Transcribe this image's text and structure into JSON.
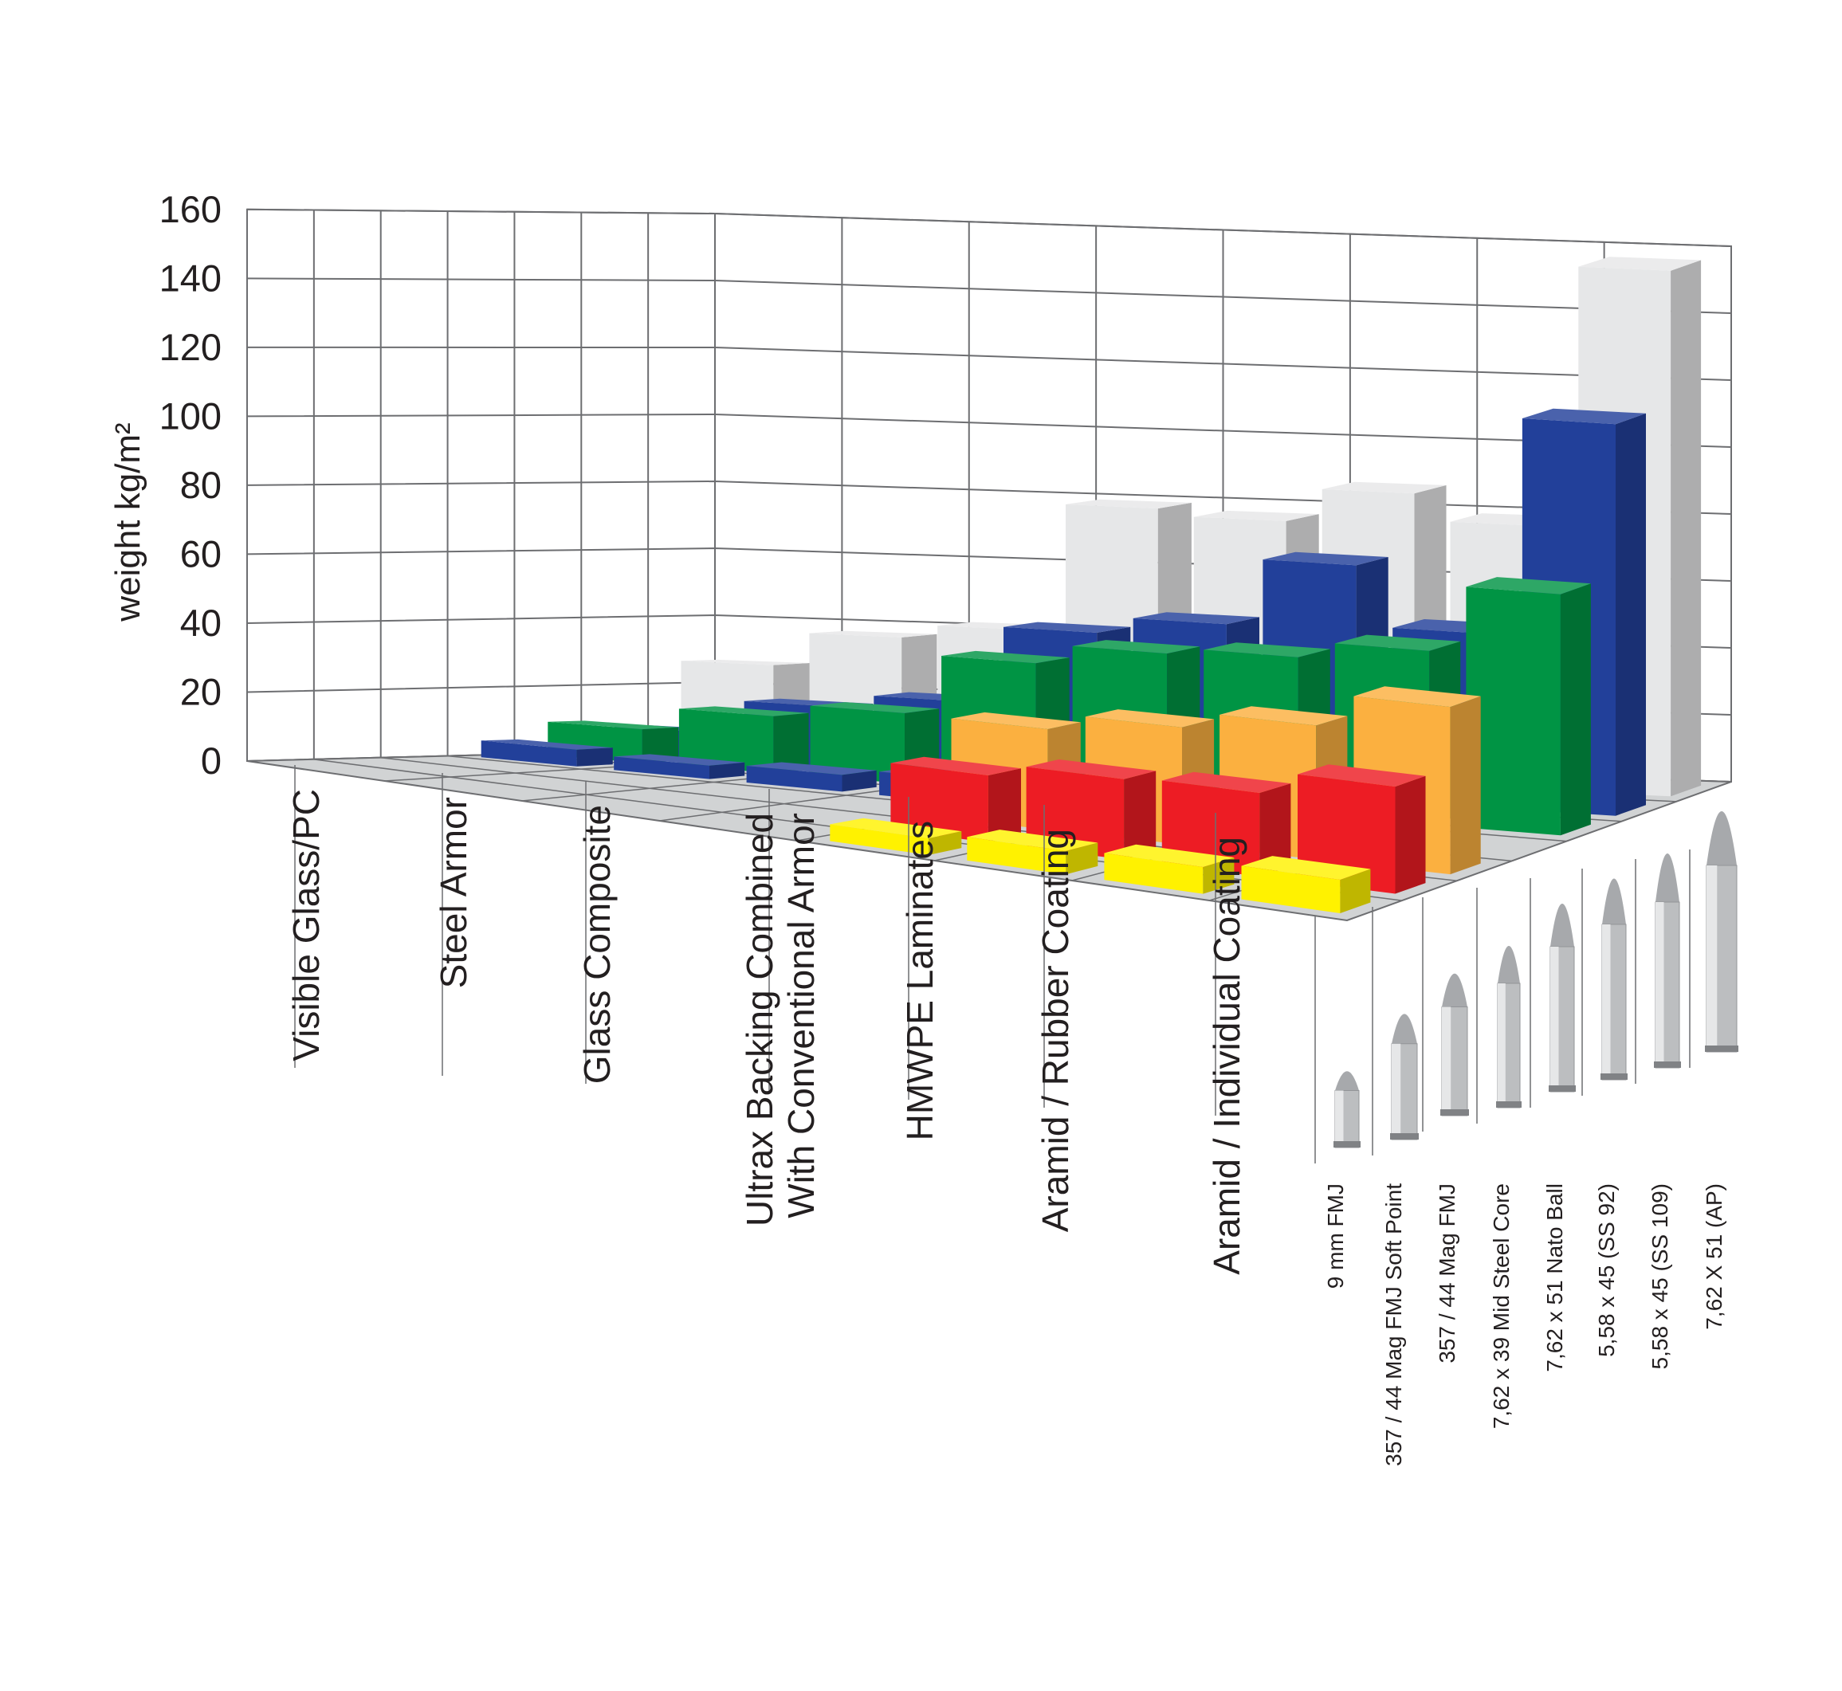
{
  "chart_data": {
    "type": "bar",
    "variant": "3d-grouped",
    "ylabel": "weight kg/m²",
    "ylim": [
      0,
      160
    ],
    "y_ticks": [
      "0",
      "20",
      "40",
      "60",
      "80",
      "100",
      "120",
      "140",
      "160"
    ],
    "grid": true,
    "materials": [
      {
        "label": "Visible Glass/PC",
        "color": "#e6e7e8"
      },
      {
        "label": "Steel Armor",
        "color": "#22409a"
      },
      {
        "label": "Glass Composite",
        "color": "#009444"
      },
      {
        "label": "Ultrax Backing Combined\nWith Conventional Armor",
        "color": "#22409a"
      },
      {
        "label": "HMWPE Laminates",
        "color": "#fbb040"
      },
      {
        "label": "Aramid / Rubber Coating",
        "color": "#ed1c24"
      },
      {
        "label": "Aramid / Individual Coating",
        "color": "#fff200"
      }
    ],
    "threats": [
      "9 mm FMJ",
      "357 / 44 Mag FMJ Soft Point",
      "357 / 44 Mag FMJ",
      "7,62 x 39 Mid Steel Core",
      "7,62 x 51 Nato Ball",
      "5,58 x 45 (SS 92)",
      "5,58 x 45 (SS 109)",
      "7,62 X 51 (AP)"
    ],
    "series": [
      {
        "values": [
          27,
          37,
          41,
          79,
          77,
          87,
          79,
          157
        ]
      },
      {
        "values": [
          8,
          18,
          22,
          45,
          50,
          70,
          52,
          117
        ]
      },
      {
        "values": [
          10,
          17,
          21,
          39,
          45,
          47,
          52,
          72
        ]
      },
      {
        "values": [
          5,
          4,
          5,
          7,
          null,
          null,
          null,
          null
        ]
      },
      {
        "values": [
          null,
          null,
          null,
          null,
          30,
          35,
          40,
          50
        ]
      },
      {
        "values": [
          null,
          null,
          null,
          null,
          20,
          24,
          25,
          32
        ]
      },
      {
        "values": [
          null,
          null,
          null,
          null,
          5,
          7,
          8,
          10
        ]
      }
    ]
  }
}
